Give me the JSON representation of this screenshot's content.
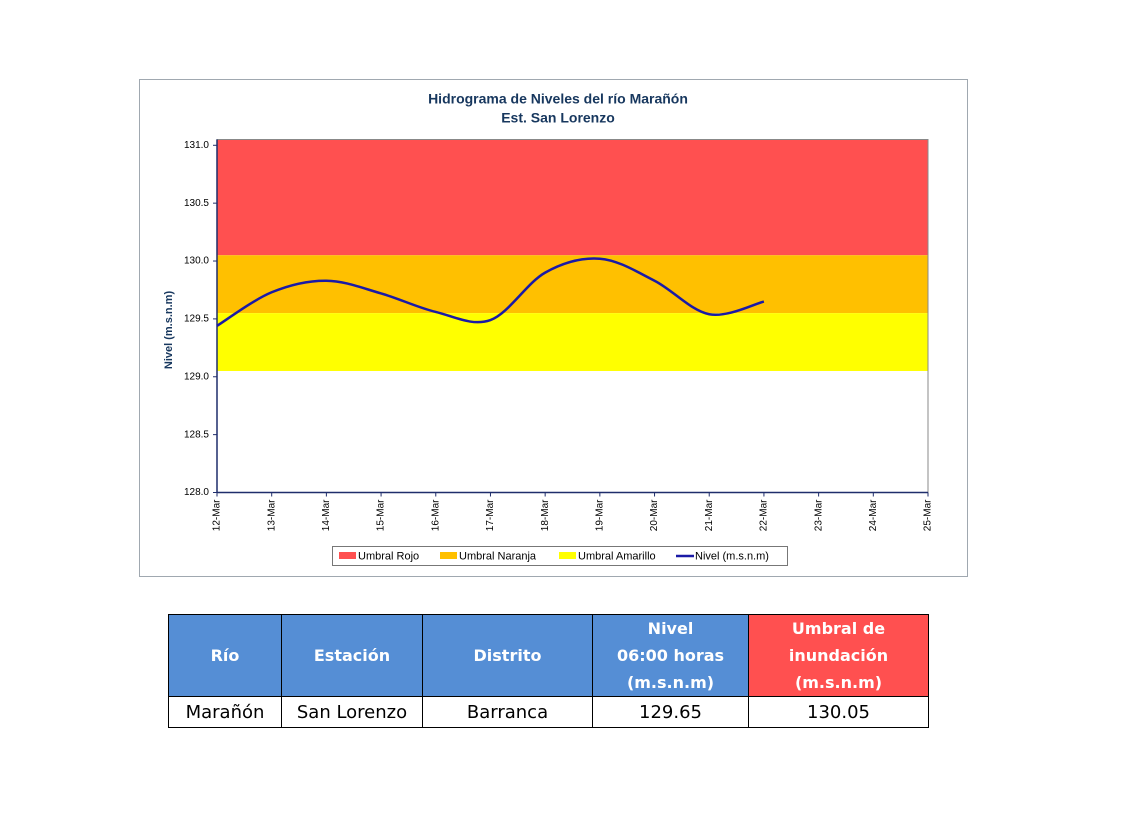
{
  "chart_data": {
    "type": "line",
    "title": "Hidrograma de Niveles del río Marañón",
    "subtitle": "Est. San Lorenzo",
    "ylabel": "Nivel (m.s.n.m)",
    "categories": [
      "12-Mar",
      "13-Mar",
      "14-Mar",
      "15-Mar",
      "16-Mar",
      "17-Mar",
      "18-Mar",
      "19-Mar",
      "20-Mar",
      "21-Mar",
      "22-Mar",
      "23-Mar",
      "24-Mar",
      "25-Mar"
    ],
    "series": [
      {
        "name": "Nivel (m.s.n.m)",
        "color": "#1a1aa6",
        "values": [
          129.44,
          129.73,
          129.83,
          129.72,
          129.56,
          129.49,
          129.9,
          130.02,
          129.83,
          129.54,
          129.65,
          null,
          null,
          null
        ]
      }
    ],
    "thresholds": [
      {
        "name": "Umbral Rojo",
        "color": "#ff5050",
        "from": 130.05,
        "to": 131.05
      },
      {
        "name": "Umbral Naranja",
        "color": "#ffc000",
        "from": 129.55,
        "to": 130.05
      },
      {
        "name": "Umbral Amarillo",
        "color": "#ffff00",
        "from": 129.05,
        "to": 129.55
      }
    ],
    "ylim": [
      128,
      131.05
    ],
    "yticks": [
      {
        "value": 128,
        "label": "128.0"
      },
      {
        "value": 128.5,
        "label": "128.5"
      },
      {
        "value": 129,
        "label": "129.0"
      },
      {
        "value": 129.5,
        "label": "129.5"
      },
      {
        "value": 130,
        "label": "130.0"
      },
      {
        "value": 130.5,
        "label": "130.5"
      },
      {
        "value": 131,
        "label": "131.0"
      }
    ],
    "smooth": true,
    "legend": "bottom"
  },
  "table": {
    "headers": [
      [
        "Río"
      ],
      [
        "Estación"
      ],
      [
        "Distrito"
      ],
      [
        "Nivel",
        "06:00 horas",
        "(m.s.n.m)"
      ],
      [
        "Umbral de",
        "inundación",
        "(m.s.n.m)"
      ]
    ],
    "rows": [
      [
        "Marañón",
        "San Lorenzo",
        "Barranca",
        129.65,
        130.05
      ]
    ]
  }
}
